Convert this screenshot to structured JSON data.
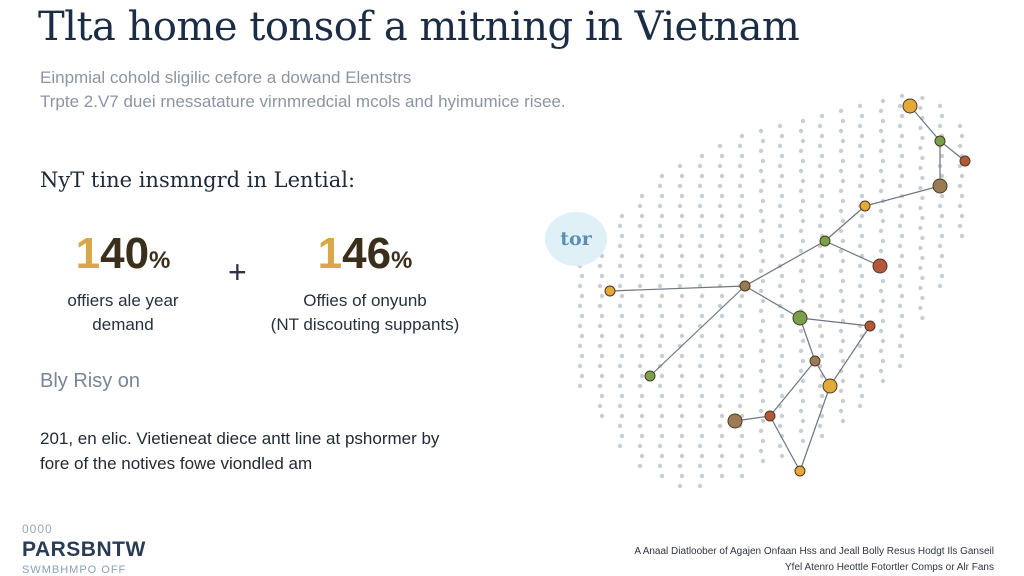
{
  "title": "Tlta home tonsof a mitning in Vietnam",
  "subtitle": {
    "line1": "Einpmial cohold sligilic cefore a dowand Elentstrs",
    "line2": "Trpte 2.V7 duei rnessatature virnmredcial mcols and hyimumice risee."
  },
  "section_heading": "NyT tine insmngrd in Lential:",
  "stats": [
    {
      "lead": "1",
      "value": "40",
      "unit": "%",
      "caption_line1": "offiers ale year",
      "caption_line2": "demand"
    },
    {
      "lead": "1",
      "value": "46",
      "unit": "%",
      "caption_line1": "Offies of onyunb",
      "caption_line2": "(NT discouting suppants)"
    }
  ],
  "operator": "+",
  "by_rising": "Bly Risy on",
  "note": {
    "line1": "201, en elic. Vietieneat diece antt line at pshormer by",
    "line2": "fore of the notives fowe viondled am"
  },
  "map": {
    "badge_label": "tor",
    "node_colors": [
      "#e4a93a",
      "#7aa04a",
      "#b5573a",
      "#9a7b55"
    ]
  },
  "footer": {
    "small": "0000",
    "brand": "PARSBNTW",
    "tag": "SWMBHMPO OFF"
  },
  "credit": {
    "line1": "A Anaal Diatloober of Agajen Onfaan Hss and Jeall Bolly Resus Hodgt Ils Ganseil",
    "line2": "Yfel Atenro Heottle Fotortler Comps or Alr Fans"
  }
}
